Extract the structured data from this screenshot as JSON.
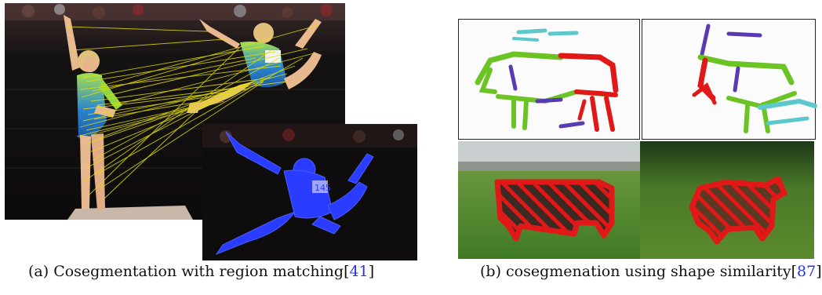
{
  "figure": {
    "panel_a": {
      "caption_prefix": "(a) Cosegmentation with region matching[",
      "caption_ref": "41",
      "caption_suffix": "]",
      "bib_number": "145"
    },
    "panel_b": {
      "caption_prefix": "(b) cosegmenation using shape similarity[",
      "caption_ref": "87",
      "caption_suffix": "]"
    },
    "colors": {
      "citation": "#2233ee",
      "leotard_green": "#8fd640",
      "leotard_blue": "#1e78c8",
      "match_lines": "#e6e000",
      "blue_overlay": "#2a3cff",
      "shape_red": "#e01818",
      "shape_green": "#6cc424",
      "shape_purple": "#5a3ab0",
      "shape_cyan": "#5cc8cc"
    }
  }
}
